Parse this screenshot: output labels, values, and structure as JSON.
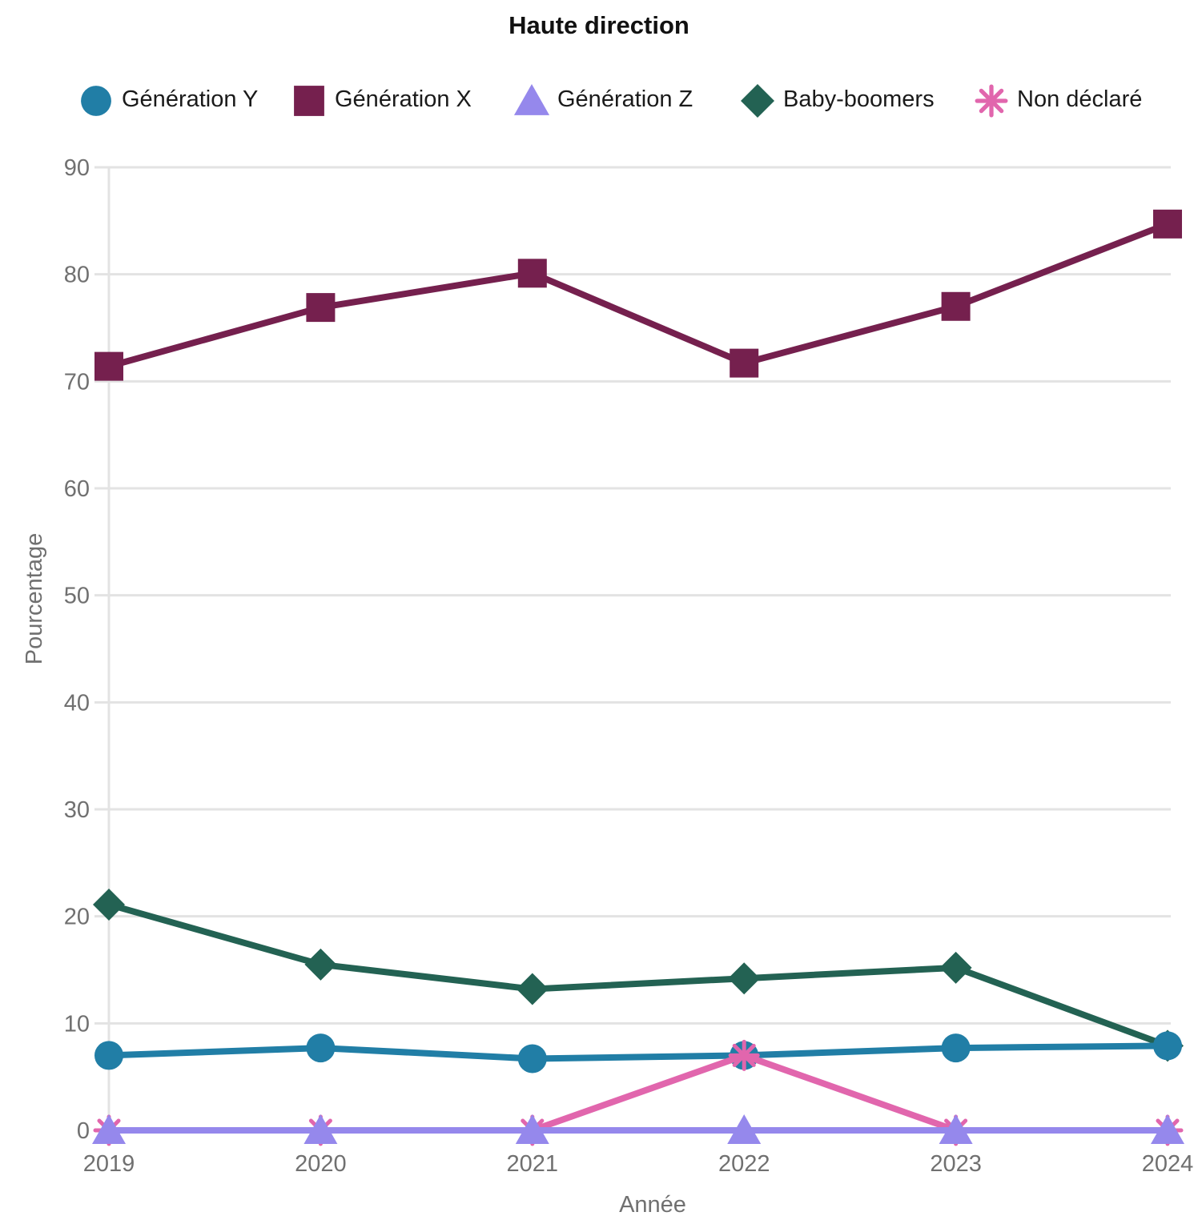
{
  "chart_data": {
    "type": "line",
    "title": "Haute direction",
    "xlabel": "Année",
    "ylabel": "Pourcentage",
    "x": [
      "2019",
      "2020",
      "2021",
      "2022",
      "2023",
      "2024"
    ],
    "ylim": [
      0,
      90
    ],
    "yticks": [
      0,
      10,
      20,
      30,
      40,
      50,
      60,
      70,
      80,
      90
    ],
    "grid": true,
    "legend_position": "top",
    "series": [
      {
        "name": "Génération Y",
        "color": "#217ea6",
        "marker": "circle",
        "values": [
          7.0,
          7.7,
          6.7,
          7.0,
          7.7,
          7.9
        ]
      },
      {
        "name": "Génération X",
        "color": "#75204e",
        "marker": "square",
        "values": [
          71.4,
          76.9,
          80.1,
          71.7,
          77.0,
          84.7
        ]
      },
      {
        "name": "Génération Z",
        "color": "#9588ec",
        "marker": "triangle",
        "values": [
          0,
          0,
          0,
          0,
          0,
          0
        ]
      },
      {
        "name": "Baby-boomers",
        "color": "#236253",
        "marker": "diamond",
        "values": [
          21.1,
          15.5,
          13.2,
          14.2,
          15.2,
          7.9
        ]
      },
      {
        "name": "Non déclaré",
        "color": "#e166ad",
        "marker": "asterisk",
        "values": [
          0,
          0,
          0,
          7.0,
          0,
          0
        ]
      }
    ]
  }
}
